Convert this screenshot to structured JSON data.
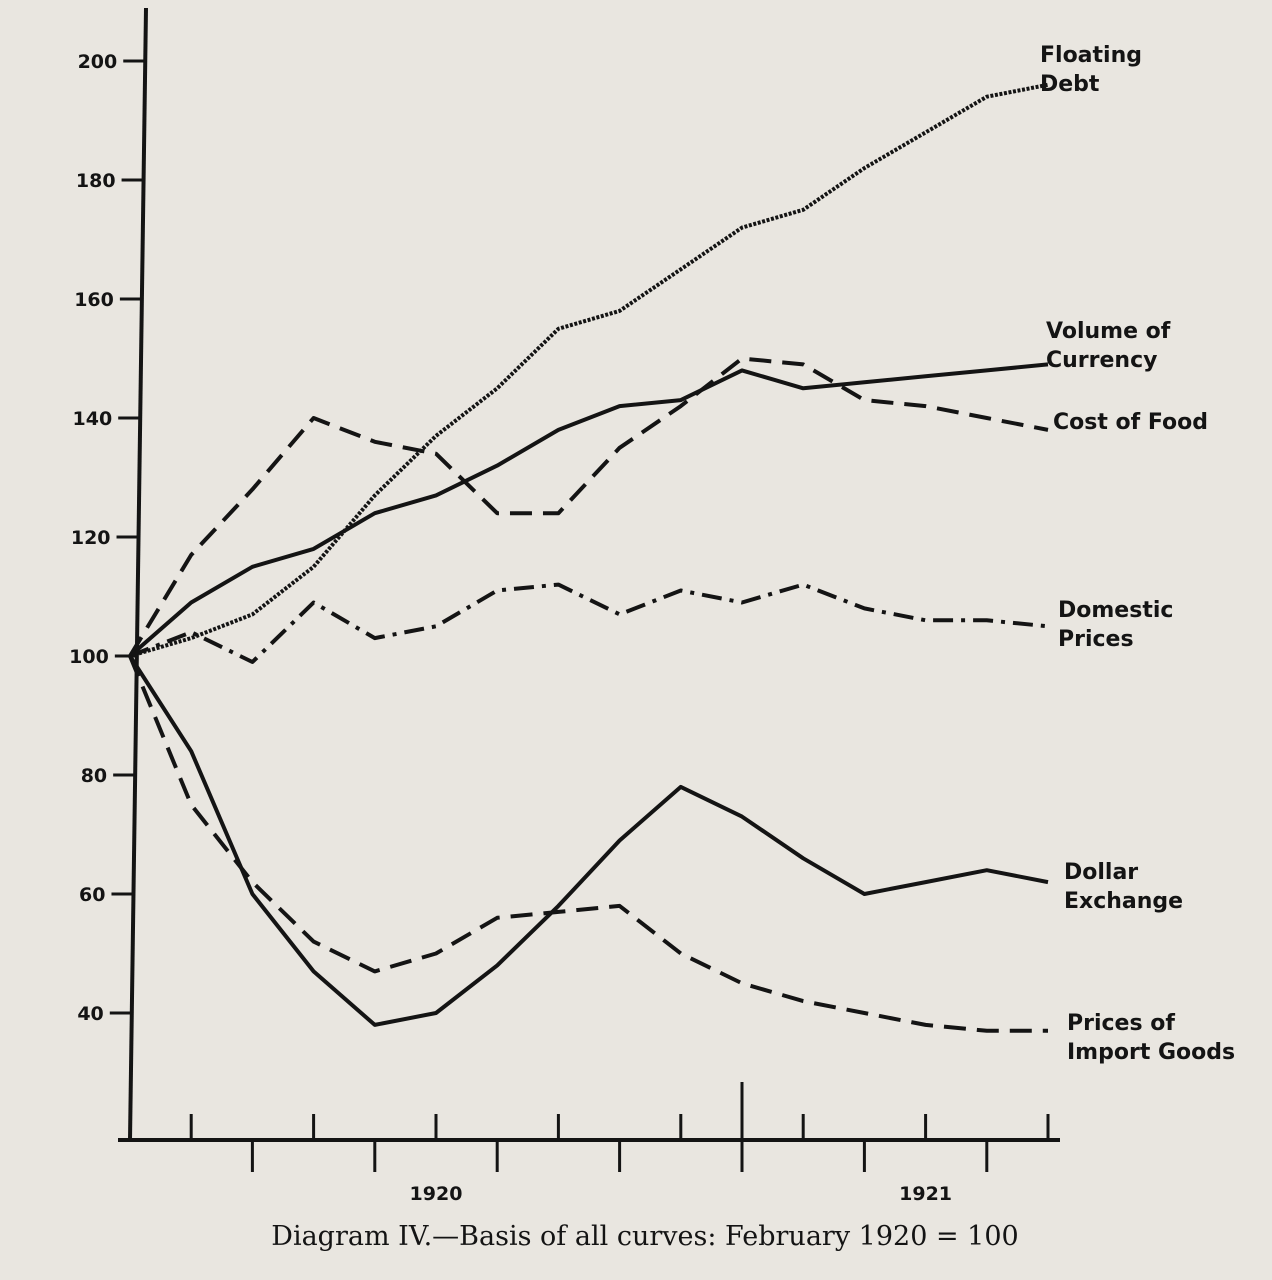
{
  "chart_data": {
    "type": "line",
    "caption": "Diagram IV.—Basis of all curves: February 1920 = 100",
    "x_tick_labels": [
      "1920",
      "1921"
    ],
    "y_ticks": [
      200,
      180,
      160,
      140,
      120,
      100,
      80,
      60,
      40
    ],
    "ylim": [
      20,
      210
    ],
    "x": [
      1,
      2,
      3,
      4,
      5,
      6,
      7,
      8,
      9,
      10,
      11,
      12,
      13,
      14,
      15,
      16
    ],
    "series": [
      {
        "name": "Floating Debt",
        "label_lines": [
          "Floating",
          "Debt"
        ],
        "style": "dotted-heavy",
        "values": [
          100,
          103,
          107,
          115,
          127,
          137,
          145,
          155,
          158,
          165,
          172,
          175,
          182,
          188,
          194,
          196
        ]
      },
      {
        "name": "Volume of Currency",
        "label_lines": [
          "Volume of",
          "Currency"
        ],
        "style": "solid",
        "values": [
          100,
          109,
          115,
          118,
          124,
          127,
          132,
          138,
          142,
          143,
          148,
          145,
          146,
          147,
          148,
          149
        ]
      },
      {
        "name": "Cost of Food",
        "label_lines": [
          "Cost of Food"
        ],
        "style": "dashed",
        "values": [
          100,
          117,
          128,
          140,
          136,
          134,
          124,
          124,
          135,
          142,
          150,
          149,
          143,
          142,
          140,
          138
        ]
      },
      {
        "name": "Domestic Prices",
        "label_lines": [
          "Domestic",
          "Prices"
        ],
        "style": "dash-dot",
        "values": [
          100,
          104,
          99,
          109,
          103,
          105,
          111,
          112,
          107,
          111,
          109,
          112,
          108,
          106,
          106,
          105
        ]
      },
      {
        "name": "Dollar Exchange",
        "label_lines": [
          "Dollar",
          "Exchange"
        ],
        "style": "solid",
        "values": [
          100,
          84,
          60,
          47,
          38,
          40,
          48,
          58,
          69,
          78,
          73,
          66,
          60,
          62,
          64,
          62
        ]
      },
      {
        "name": "Prices of Import Goods",
        "label_lines": [
          "Prices of",
          "Import Goods"
        ],
        "style": "dashed",
        "values": [
          100,
          75,
          62,
          52,
          47,
          50,
          56,
          57,
          58,
          50,
          45,
          42,
          40,
          38,
          37,
          37
        ]
      }
    ]
  }
}
